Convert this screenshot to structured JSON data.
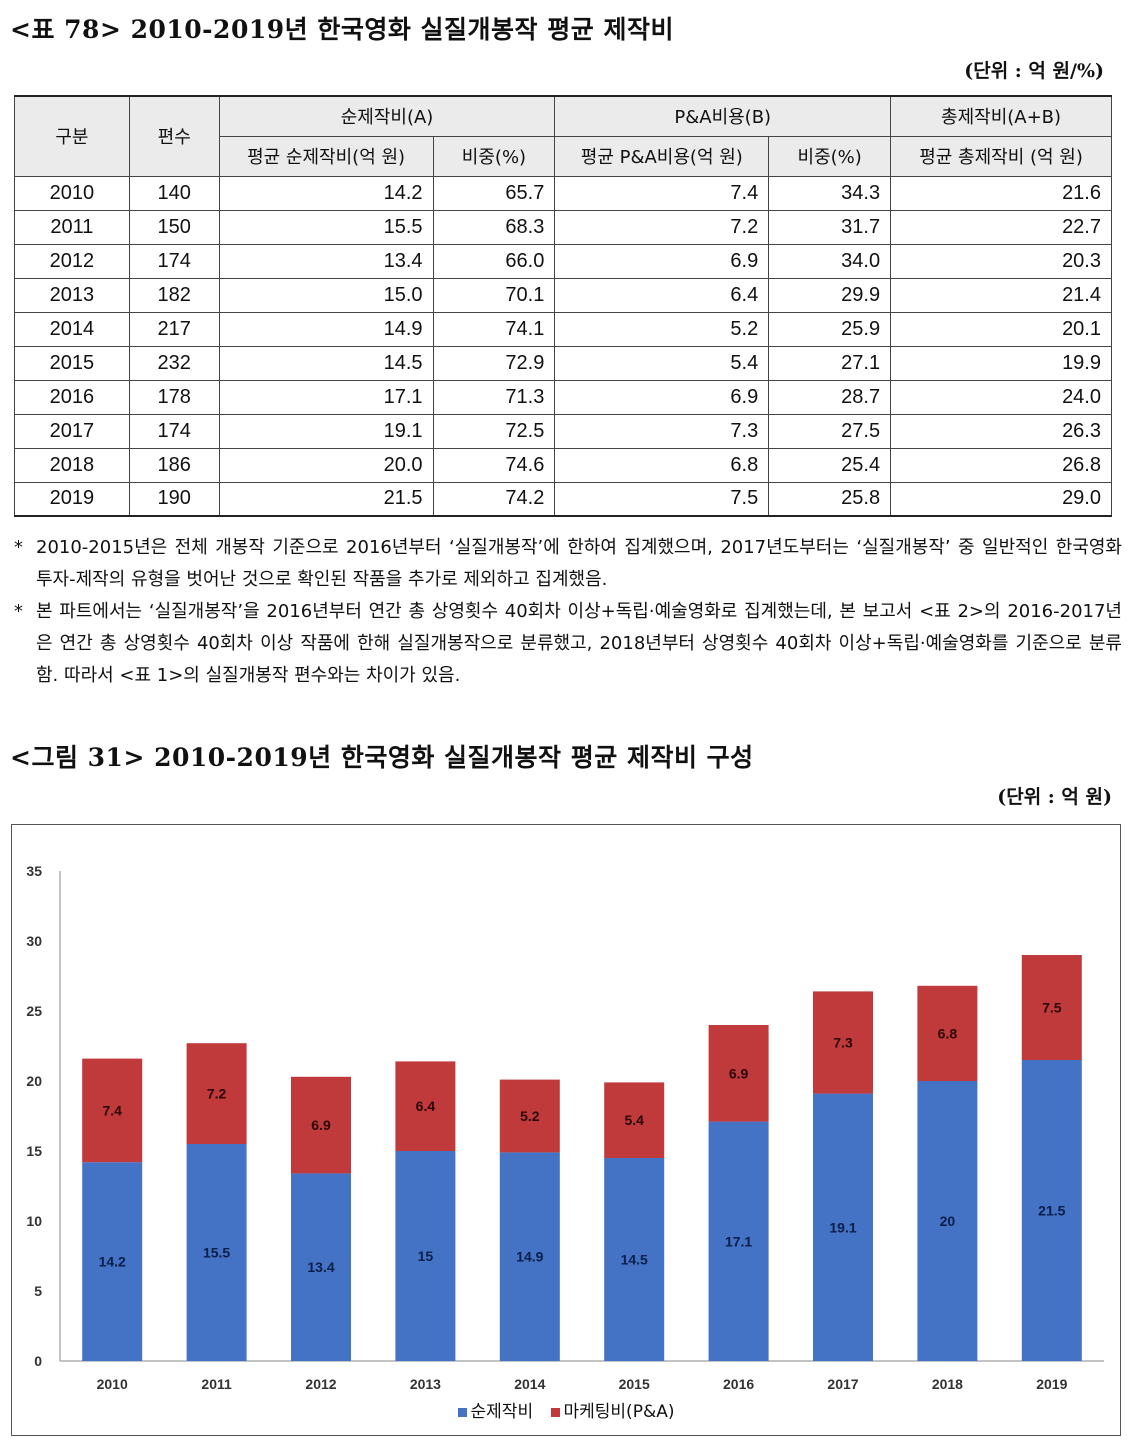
{
  "table": {
    "title": "<표 78> 2010-2019년 한국영화 실질개봉작 평균 제작비",
    "unit": "(단위 : 억 원/%)",
    "headers": {
      "category": "구분",
      "count": "편수",
      "group_a": "순제작비(A)",
      "group_b": "P&A비용(B)",
      "group_total": "총제작비(A+B)",
      "avg_net": "평균 순제작비(억 원)",
      "share_net": "비중(%)",
      "avg_pa": "평균 P&A비용(억 원)",
      "share_pa": "비중(%)",
      "avg_total": "평균 총제작비 (억 원)"
    },
    "rows": [
      [
        "2010",
        "140",
        "14.2",
        "65.7",
        "7.4",
        "34.3",
        "21.6"
      ],
      [
        "2011",
        "150",
        "15.5",
        "68.3",
        "7.2",
        "31.7",
        "22.7"
      ],
      [
        "2012",
        "174",
        "13.4",
        "66.0",
        "6.9",
        "34.0",
        "20.3"
      ],
      [
        "2013",
        "182",
        "15.0",
        "70.1",
        "6.4",
        "29.9",
        "21.4"
      ],
      [
        "2014",
        "217",
        "14.9",
        "74.1",
        "5.2",
        "25.9",
        "20.1"
      ],
      [
        "2015",
        "232",
        "14.5",
        "72.9",
        "5.4",
        "27.1",
        "19.9"
      ],
      [
        "2016",
        "178",
        "17.1",
        "71.3",
        "6.9",
        "28.7",
        "24.0"
      ],
      [
        "2017",
        "174",
        "19.1",
        "72.5",
        "7.3",
        "27.5",
        "26.3"
      ],
      [
        "2018",
        "186",
        "20.0",
        "74.6",
        "6.8",
        "25.4",
        "26.8"
      ],
      [
        "2019",
        "190",
        "21.5",
        "74.2",
        "7.5",
        "25.8",
        "29.0"
      ]
    ]
  },
  "notes": [
    "2010-2015년은 전체 개봉작 기준으로 2016년부터 ‘실질개봉작’에 한하여 집계했으며, 2017년도부터는 ‘실질개봉작’ 중 일반적인 한국영화 투자-제작의 유형을 벗어난 것으로 확인된 작품을 추가로 제외하고 집계했음.",
    "본 파트에서는 ‘실질개봉작’을 2016년부터 연간 총 상영횟수 40회차 이상+독립·예술영화로 집계했는데, 본 보고서 <표 2>의 2016-2017년은 연간 총 상영횟수 40회차 이상 작품에 한해 실질개봉작으로 분류했고, 2018년부터 상영횟수 40회차 이상+독립·예술영화를 기준으로 분류함. 따라서 <표 1>의 실질개봉작 편수와는 차이가 있음."
  ],
  "note_marker": "*",
  "figure": {
    "title": "<그림 31> 2010-2019년 한국영화 실질개봉작 평균 제작비 구성",
    "unit": "(단위 : 억 원)"
  },
  "chart_data": {
    "type": "bar",
    "stacked": true,
    "categories": [
      "2010",
      "2011",
      "2012",
      "2013",
      "2014",
      "2015",
      "2016",
      "2017",
      "2018",
      "2019"
    ],
    "series": [
      {
        "name": "순제작비",
        "values": [
          14.2,
          15.5,
          13.4,
          15,
          14.9,
          14.5,
          17.1,
          19.1,
          20,
          21.5
        ],
        "color": "#4472c4"
      },
      {
        "name": "마케팅비(P&A)",
        "values": [
          7.4,
          7.2,
          6.9,
          6.4,
          5.2,
          5.4,
          6.9,
          7.3,
          6.8,
          7.5
        ],
        "color": "#c0393b"
      }
    ],
    "ylim": [
      0,
      35
    ],
    "yticks": [
      0,
      5,
      10,
      15,
      20,
      25,
      30,
      35
    ],
    "grid": false,
    "legend": "bottom",
    "xlabel": "",
    "ylabel": ""
  }
}
